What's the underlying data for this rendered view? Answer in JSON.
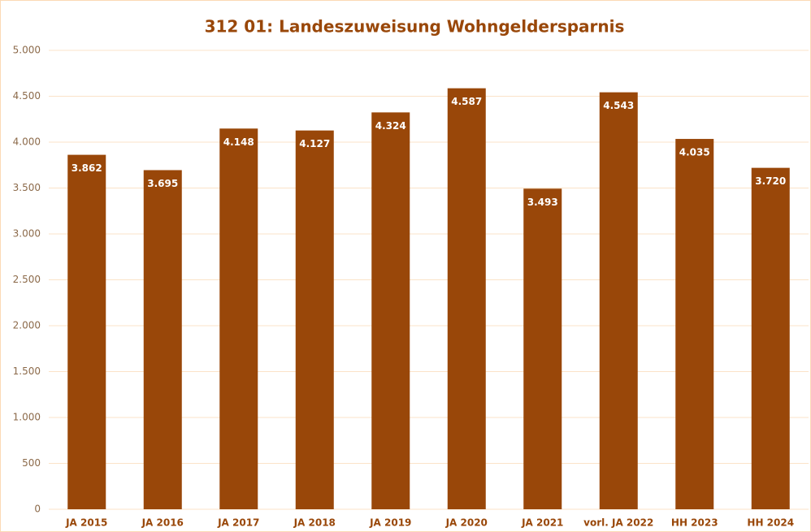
{
  "chart_data": {
    "type": "bar",
    "title": "312 01: Landeszuweisung Wohngeldersparnis",
    "categories": [
      "JA 2015",
      "JA 2016",
      "JA 2017",
      "JA 2018",
      "JA 2019",
      "JA 2020",
      "JA 2021",
      "vorl. JA 2022",
      "HH 2023",
      "HH 2024"
    ],
    "values": [
      3862,
      3695,
      4148,
      4127,
      4324,
      4587,
      3493,
      4543,
      4035,
      3720
    ],
    "value_labels": [
      "3.862",
      "3.695",
      "4.148",
      "4.127",
      "4.324",
      "4.587",
      "3.493",
      "4.543",
      "4.035",
      "3.720"
    ],
    "color": "#994709",
    "ylim": [
      0,
      5000
    ],
    "yticks": [
      0,
      500,
      {
        "value": 1000,
        "label": "1.000"
      },
      {
        "value": 1500,
        "label": "1.500"
      },
      {
        "value": 2000,
        "label": "2.000"
      },
      {
        "value": 2500,
        "label": "2.500"
      },
      {
        "value": 3000,
        "label": "3.000"
      },
      {
        "value": 3500,
        "label": "3.500"
      },
      {
        "value": 4000,
        "label": "4.000"
      },
      {
        "value": 4500,
        "label": "4.500"
      },
      {
        "value": 5000,
        "label": "5.000"
      }
    ],
    "grid": true
  }
}
